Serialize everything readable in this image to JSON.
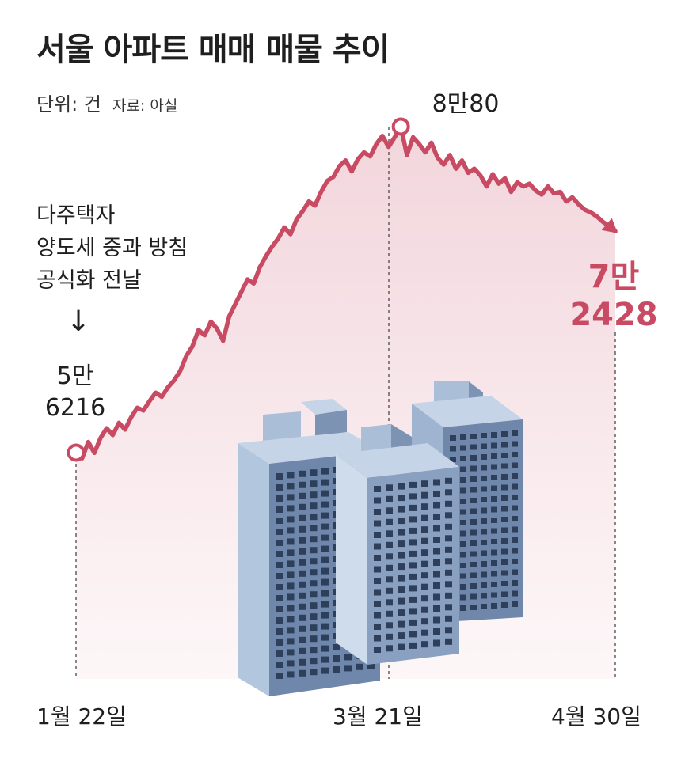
{
  "header": {
    "title": "서울 아파트 매매 매물 추이",
    "unit": "단위: 건",
    "source": "자료: 아실"
  },
  "colors": {
    "line": "#c94a63",
    "area_top": "#f2d6dc",
    "area_bottom": "#fdf7f8",
    "text": "#1f1f1f"
  },
  "annotation": {
    "lines": [
      "다주택자",
      "양도세 중과 방침",
      "공식화 전날"
    ],
    "arrow": "↓"
  },
  "labels": {
    "start_lines": [
      "5만",
      "6216"
    ],
    "peak": "8만80",
    "end_lines": [
      "7만",
      "2428"
    ]
  },
  "illustration": "apartment-buildings",
  "chart_data": {
    "type": "area",
    "x_ticks": [
      "1월 22일",
      "3월 21일",
      "4월 30일"
    ],
    "start": {
      "label": "1월 22일",
      "value": 56216
    },
    "peak": {
      "label": "3월 21일",
      "value": 80080
    },
    "end": {
      "label": "4월 30일",
      "value": 72428
    },
    "series": [
      {
        "values": [
          56216,
          55800,
          57000,
          56200,
          57300,
          58000,
          57500,
          58400,
          57900,
          58800,
          59500,
          59300,
          60000,
          60600,
          60300,
          61000,
          61500,
          62200,
          63300,
          64000,
          65200,
          64800,
          65800,
          65300,
          64400,
          66200,
          67100,
          68000,
          68900,
          68600,
          69800,
          70600,
          71300,
          71900,
          72700,
          72200,
          73300,
          73900,
          74600,
          74300,
          75300,
          76100,
          76400,
          77200,
          77600,
          76800,
          77700,
          78200,
          77900,
          78800,
          79400,
          78600,
          79300,
          80080,
          78000,
          79300,
          78800,
          78200,
          78900,
          77800,
          77300,
          78000,
          77000,
          77600,
          76700,
          77000,
          76500,
          75700,
          76600,
          75900,
          76300,
          75300,
          76000,
          75700,
          75900,
          75400,
          75100,
          75700,
          75200,
          75300,
          74600,
          74900,
          74400,
          74000,
          73800,
          73500,
          73100,
          72800,
          72428
        ]
      }
    ],
    "ylim": [
      54000,
      82000
    ]
  }
}
